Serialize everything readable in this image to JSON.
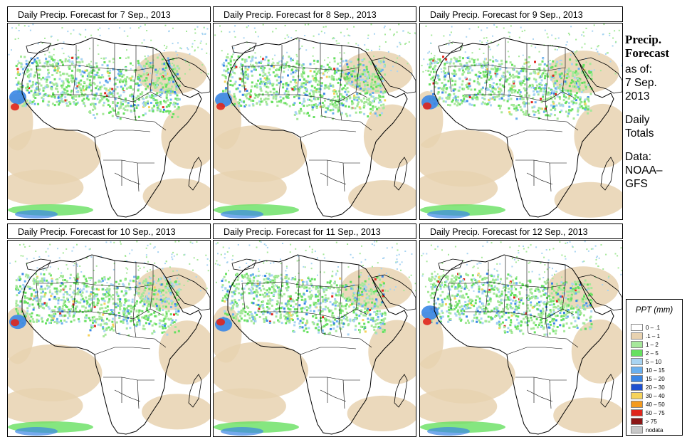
{
  "panels": [
    {
      "title": "Daily Precip. Forecast for  7 Sep., 2013",
      "pattern": 1
    },
    {
      "title": "Daily Precip. Forecast for  8 Sep., 2013",
      "pattern": 2
    },
    {
      "title": "Daily Precip. Forecast for  9 Sep., 2013",
      "pattern": 3
    },
    {
      "title": "Daily Precip. Forecast for  10 Sep., 2013",
      "pattern": 4
    },
    {
      "title": "Daily Precip. Forecast for  11 Sep., 2013",
      "pattern": 5
    },
    {
      "title": "Daily Precip. Forecast for  12 Sep., 2013",
      "pattern": 6
    }
  ],
  "sidebar": {
    "heading_line1": "Precip.",
    "heading_line2": "Forecast",
    "as_of_label": "as of:",
    "date_line1": "7 Sep.",
    "date_line2": "2013",
    "totals_line1": "Daily",
    "totals_line2": "Totals",
    "data_line1": "Data:",
    "data_line2": "NOAA–",
    "data_line3": "GFS"
  },
  "legend": {
    "title": "PPT (mm)",
    "items": [
      {
        "label": "0 – .1",
        "color": "#ffffff"
      },
      {
        "label": ".1 – 1",
        "color": "#e8d2b0"
      },
      {
        "label": "1 – 2",
        "color": "#a6e89a"
      },
      {
        "label": "2 – 5",
        "color": "#66e060"
      },
      {
        "label": "5 – 10",
        "color": "#a8d4f2"
      },
      {
        "label": "10 – 15",
        "color": "#6ab0ee"
      },
      {
        "label": "15 – 20",
        "color": "#3a86e6"
      },
      {
        "label": "20 – 30",
        "color": "#1c4fd0"
      },
      {
        "label": "30 – 40",
        "color": "#f6d35a"
      },
      {
        "label": "40 – 50",
        "color": "#f39a1e"
      },
      {
        "label": "50 – 75",
        "color": "#e0261c"
      },
      {
        "label": "> 75",
        "color": "#8c1616"
      },
      {
        "label": "nodata",
        "color": "#c8c8c8"
      }
    ]
  }
}
